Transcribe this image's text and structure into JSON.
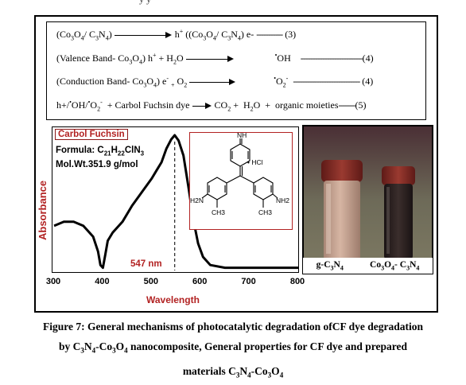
{
  "equations": [
    {
      "id": "eq3",
      "lhs": "(Co3O4/ C3N4)",
      "rhs": "h+ ((Co3O4/ C3N4) e-",
      "number": "(3)"
    },
    {
      "id": "eq4a",
      "lhs": "(Valence Band- Co3O4) h+ + H2O",
      "rhs": "•OH",
      "number": "(4)"
    },
    {
      "id": "eq4b",
      "lhs": "(Conduction Band- Co3O4) e- + O2",
      "rhs": "•O2-",
      "number": "(4)"
    },
    {
      "id": "eq5",
      "lhs": "h+/•OH/•O2- + Carbol Fuchsin dye",
      "rhs": "CO2 + H2O + organic moieties",
      "number": "(5)"
    }
  ],
  "dye": {
    "name": "Carbol Fuchsin",
    "formula_label": "Formula: C21H22ClN3",
    "mol_wt": "Mol.Wt.351.9 g/mol",
    "structure_labels": {
      "imine": "NH",
      "salt": "• HCl",
      "amine_left": "H2N",
      "amine_right": "NH2",
      "methyl": "CH3"
    }
  },
  "chart_data": {
    "type": "line",
    "title": "",
    "xlabel": "Wavelength",
    "ylabel": "Absorbance",
    "xlim": [
      300,
      800
    ],
    "x_ticks": [
      300,
      400,
      500,
      600,
      700,
      800
    ],
    "y_ticks_shown": false,
    "annotations": [
      {
        "text": "547 nm",
        "x": 547,
        "style": "dashed vertical line"
      }
    ],
    "series": [
      {
        "x": [
          300,
          320,
          340,
          360,
          380,
          390,
          395,
          400,
          405,
          410,
          420,
          440,
          460,
          480,
          500,
          510,
          520,
          530,
          540,
          547,
          555,
          565,
          575,
          585,
          595,
          605,
          620,
          650,
          700,
          750,
          800
        ],
        "y": [
          0.33,
          0.36,
          0.36,
          0.33,
          0.25,
          0.14,
          0.04,
          0.02,
          0.12,
          0.22,
          0.28,
          0.36,
          0.48,
          0.58,
          0.68,
          0.74,
          0.8,
          0.9,
          0.97,
          1.0,
          0.96,
          0.85,
          0.62,
          0.38,
          0.2,
          0.1,
          0.04,
          0.02,
          0.02,
          0.02,
          0.02
        ]
      }
    ],
    "colors": {
      "line": "#000000",
      "peak_line": "#333333"
    }
  },
  "photo": {
    "labels": [
      "g-C3N4",
      "Co3O4- C3N4"
    ],
    "colors": {
      "cap": "#8a2a25",
      "left_powder": "#c7a28f",
      "right_powder": "#2b1f1e",
      "background": "#6b6f60"
    }
  },
  "caption": {
    "line1": "Figure 7: General mechanisms of photocatalytic degradation ofCF dye degradation",
    "line2": "by C3N4-Co3O4 nanocomposite, General properties for CF dye and prepared",
    "line3": "materials C3N4-Co3O4"
  }
}
